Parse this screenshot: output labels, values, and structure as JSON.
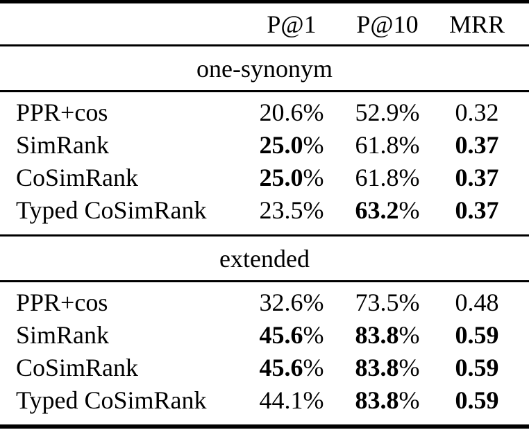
{
  "table": {
    "columns": [
      "P@1",
      "P@10",
      "MRR"
    ],
    "percent_sign": "%",
    "sections": [
      {
        "title": "one-synonym",
        "rows": [
          {
            "method": "PPR+cos",
            "p1": "20.6",
            "p10": "52.9",
            "mrr": "0.32",
            "bold": []
          },
          {
            "method": "SimRank",
            "p1": "25.0",
            "p10": "61.8",
            "mrr": "0.37",
            "bold": [
              "p1",
              "mrr"
            ]
          },
          {
            "method": "CoSimRank",
            "p1": "25.0",
            "p10": "61.8",
            "mrr": "0.37",
            "bold": [
              "p1",
              "mrr"
            ]
          },
          {
            "method": "Typed CoSimRank",
            "p1": "23.5",
            "p10": "63.2",
            "mrr": "0.37",
            "bold": [
              "p10",
              "mrr"
            ]
          }
        ]
      },
      {
        "title": "extended",
        "rows": [
          {
            "method": "PPR+cos",
            "p1": "32.6",
            "p10": "73.5",
            "mrr": "0.48",
            "bold": []
          },
          {
            "method": "SimRank",
            "p1": "45.6",
            "p10": "83.8",
            "mrr": "0.59",
            "bold": [
              "p1",
              "p10",
              "mrr"
            ]
          },
          {
            "method": "CoSimRank",
            "p1": "45.6",
            "p10": "83.8",
            "mrr": "0.59",
            "bold": [
              "p1",
              "p10",
              "mrr"
            ]
          },
          {
            "method": "Typed CoSimRank",
            "p1": "44.1",
            "p10": "83.8",
            "mrr": "0.59",
            "bold": [
              "p10",
              "mrr"
            ]
          }
        ]
      }
    ]
  },
  "colors": {
    "text": "#000000",
    "background": "#ffffff",
    "rule": "#000000"
  }
}
